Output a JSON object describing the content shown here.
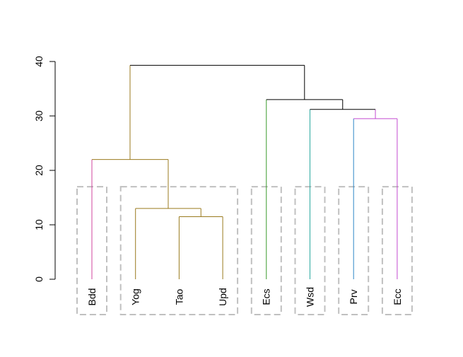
{
  "chart_data": {
    "type": "dendrogram",
    "title": "",
    "xlabel": "",
    "ylabel": "",
    "ylim": [
      0,
      40
    ],
    "y_ticks": [
      {
        "value": 0,
        "label": "0"
      },
      {
        "value": 10,
        "label": "10"
      },
      {
        "value": 20,
        "label": "20"
      },
      {
        "value": 30,
        "label": "30"
      },
      {
        "value": 40,
        "label": "40"
      }
    ],
    "leaves": [
      "Bdd",
      "Yog",
      "Tao",
      "Upd",
      "Ecs",
      "Wsd",
      "Prv",
      "Ecc"
    ],
    "merges": [
      {
        "id": "m1",
        "left": "Tao",
        "right": "Upd",
        "height": 11.5,
        "color": "#9a7a1e"
      },
      {
        "id": "m2",
        "left": "Yog",
        "right": "m1",
        "height": 13.0,
        "color": "#9a7a1e"
      },
      {
        "id": "m3",
        "left": "Bdd",
        "right": "m2",
        "height": 22.0,
        "color": "#9a7a1e"
      },
      {
        "id": "m4",
        "left": "Prv",
        "right": "Ecc",
        "height": 29.5,
        "color": "#c34bd0"
      },
      {
        "id": "m5",
        "left": "Wsd",
        "right": "m4",
        "height": 31.2,
        "color": "#000000"
      },
      {
        "id": "m6",
        "left": "Ecs",
        "right": "m5",
        "height": 33.0,
        "color": "#000000"
      },
      {
        "id": "m7",
        "left": "m3",
        "right": "m6",
        "height": 39.3,
        "color": "#000000"
      }
    ],
    "branch_colors": {
      "Bdd": "#d0459e",
      "Yog": "#9a7a1e",
      "Tao": "#9a7a1e",
      "Upd": "#9a7a1e",
      "Ecs": "#3a9a2a",
      "Wsd": "#2aa8a0",
      "Prv": "#2f87c8",
      "Ecc": "#c34bd0"
    },
    "cluster_cut_height": 17,
    "clusters": [
      [
        "Bdd"
      ],
      [
        "Yog",
        "Tao",
        "Upd"
      ],
      [
        "Ecs"
      ],
      [
        "Wsd"
      ],
      [
        "Prv"
      ],
      [
        "Ecc"
      ]
    ],
    "cluster_box_color": "#c0c0c0",
    "axis_color": "#000000"
  }
}
